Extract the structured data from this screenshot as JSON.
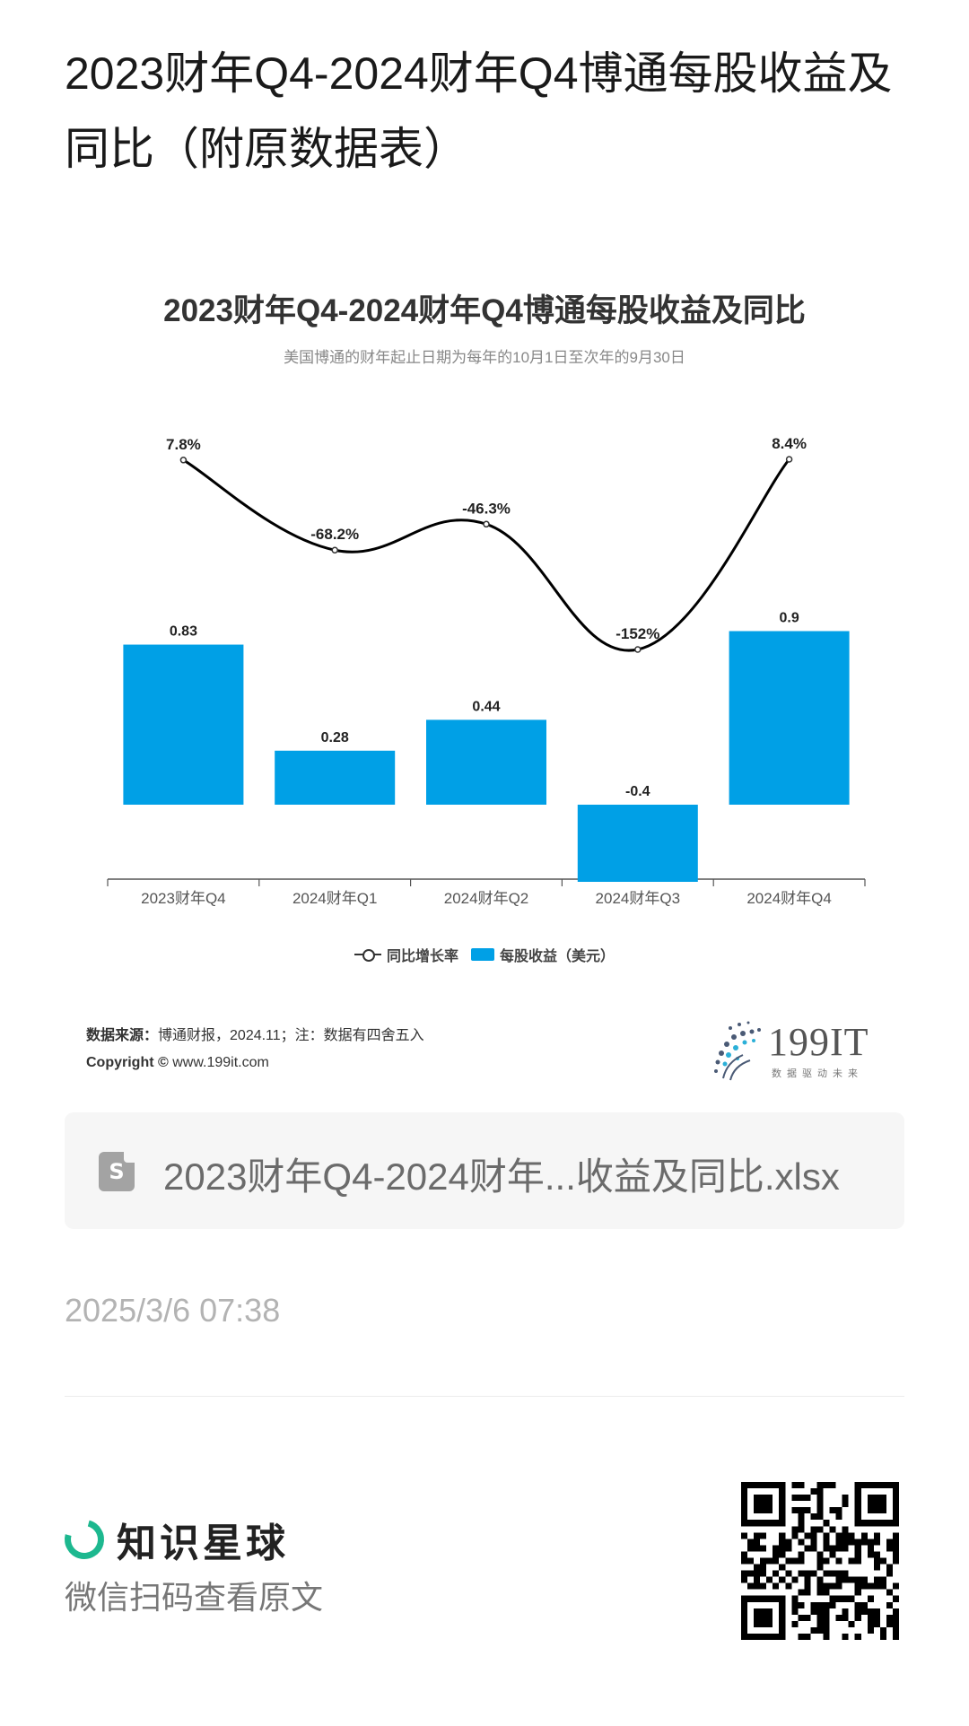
{
  "page": {
    "title": "2023财年Q4-2024财年Q4博通每股收益及同比（附原数据表）"
  },
  "chart_data": {
    "type": "bar",
    "title": "2023财年Q4-2024财年Q4博通每股收益及同比",
    "subtitle": "美国博通的财年起止日期为每年的10月1日至次年的9月30日",
    "categories": [
      "2023财年Q4",
      "2024财年Q1",
      "2024财年Q2",
      "2024财年Q3",
      "2024财年Q4"
    ],
    "series": [
      {
        "name": "同比增长率",
        "type": "line",
        "smooth": true,
        "values": [
          7.8,
          -68.2,
          -46.3,
          -152,
          8.4
        ],
        "labels": [
          "7.8%",
          "-68.2%",
          "-46.3%",
          "-152%",
          "8.4%"
        ],
        "color": "#000000"
      },
      {
        "name": "每股收益（美元）",
        "type": "bar",
        "values": [
          0.83,
          0.28,
          0.44,
          -0.4,
          0.9
        ],
        "labels": [
          "0.83",
          "0.28",
          "0.44",
          "-0.4",
          "0.9"
        ],
        "color": "#00A0E6"
      }
    ],
    "legend_position": "bottom",
    "grid": false
  },
  "chart_footer": {
    "source_label": "数据来源：",
    "source_text": "博通财报，2024.11；注：数据有四舍五入",
    "copyright_label": "Copyright ©",
    "copyright_text": "www.199it.com",
    "brand_name": "199IT",
    "brand_slogan": "数据驱动未来"
  },
  "attachment": {
    "file_name": "2023财年Q4-2024财年...收益及同比.xlsx",
    "icon": "spreadsheet-file-icon"
  },
  "timestamp": "2025/3/6 07:38",
  "footer": {
    "brand": "知识星球",
    "hint": "微信扫码查看原文"
  }
}
